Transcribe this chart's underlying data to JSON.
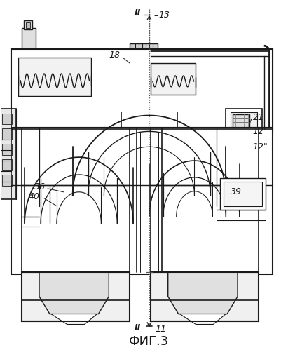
{
  "title": "ФИГ.3",
  "title_fontsize": 13,
  "background_color": "#ffffff",
  "line_color": "#1a1a1a",
  "fig_width": 4.01,
  "fig_height": 4.99,
  "dpi": 100
}
